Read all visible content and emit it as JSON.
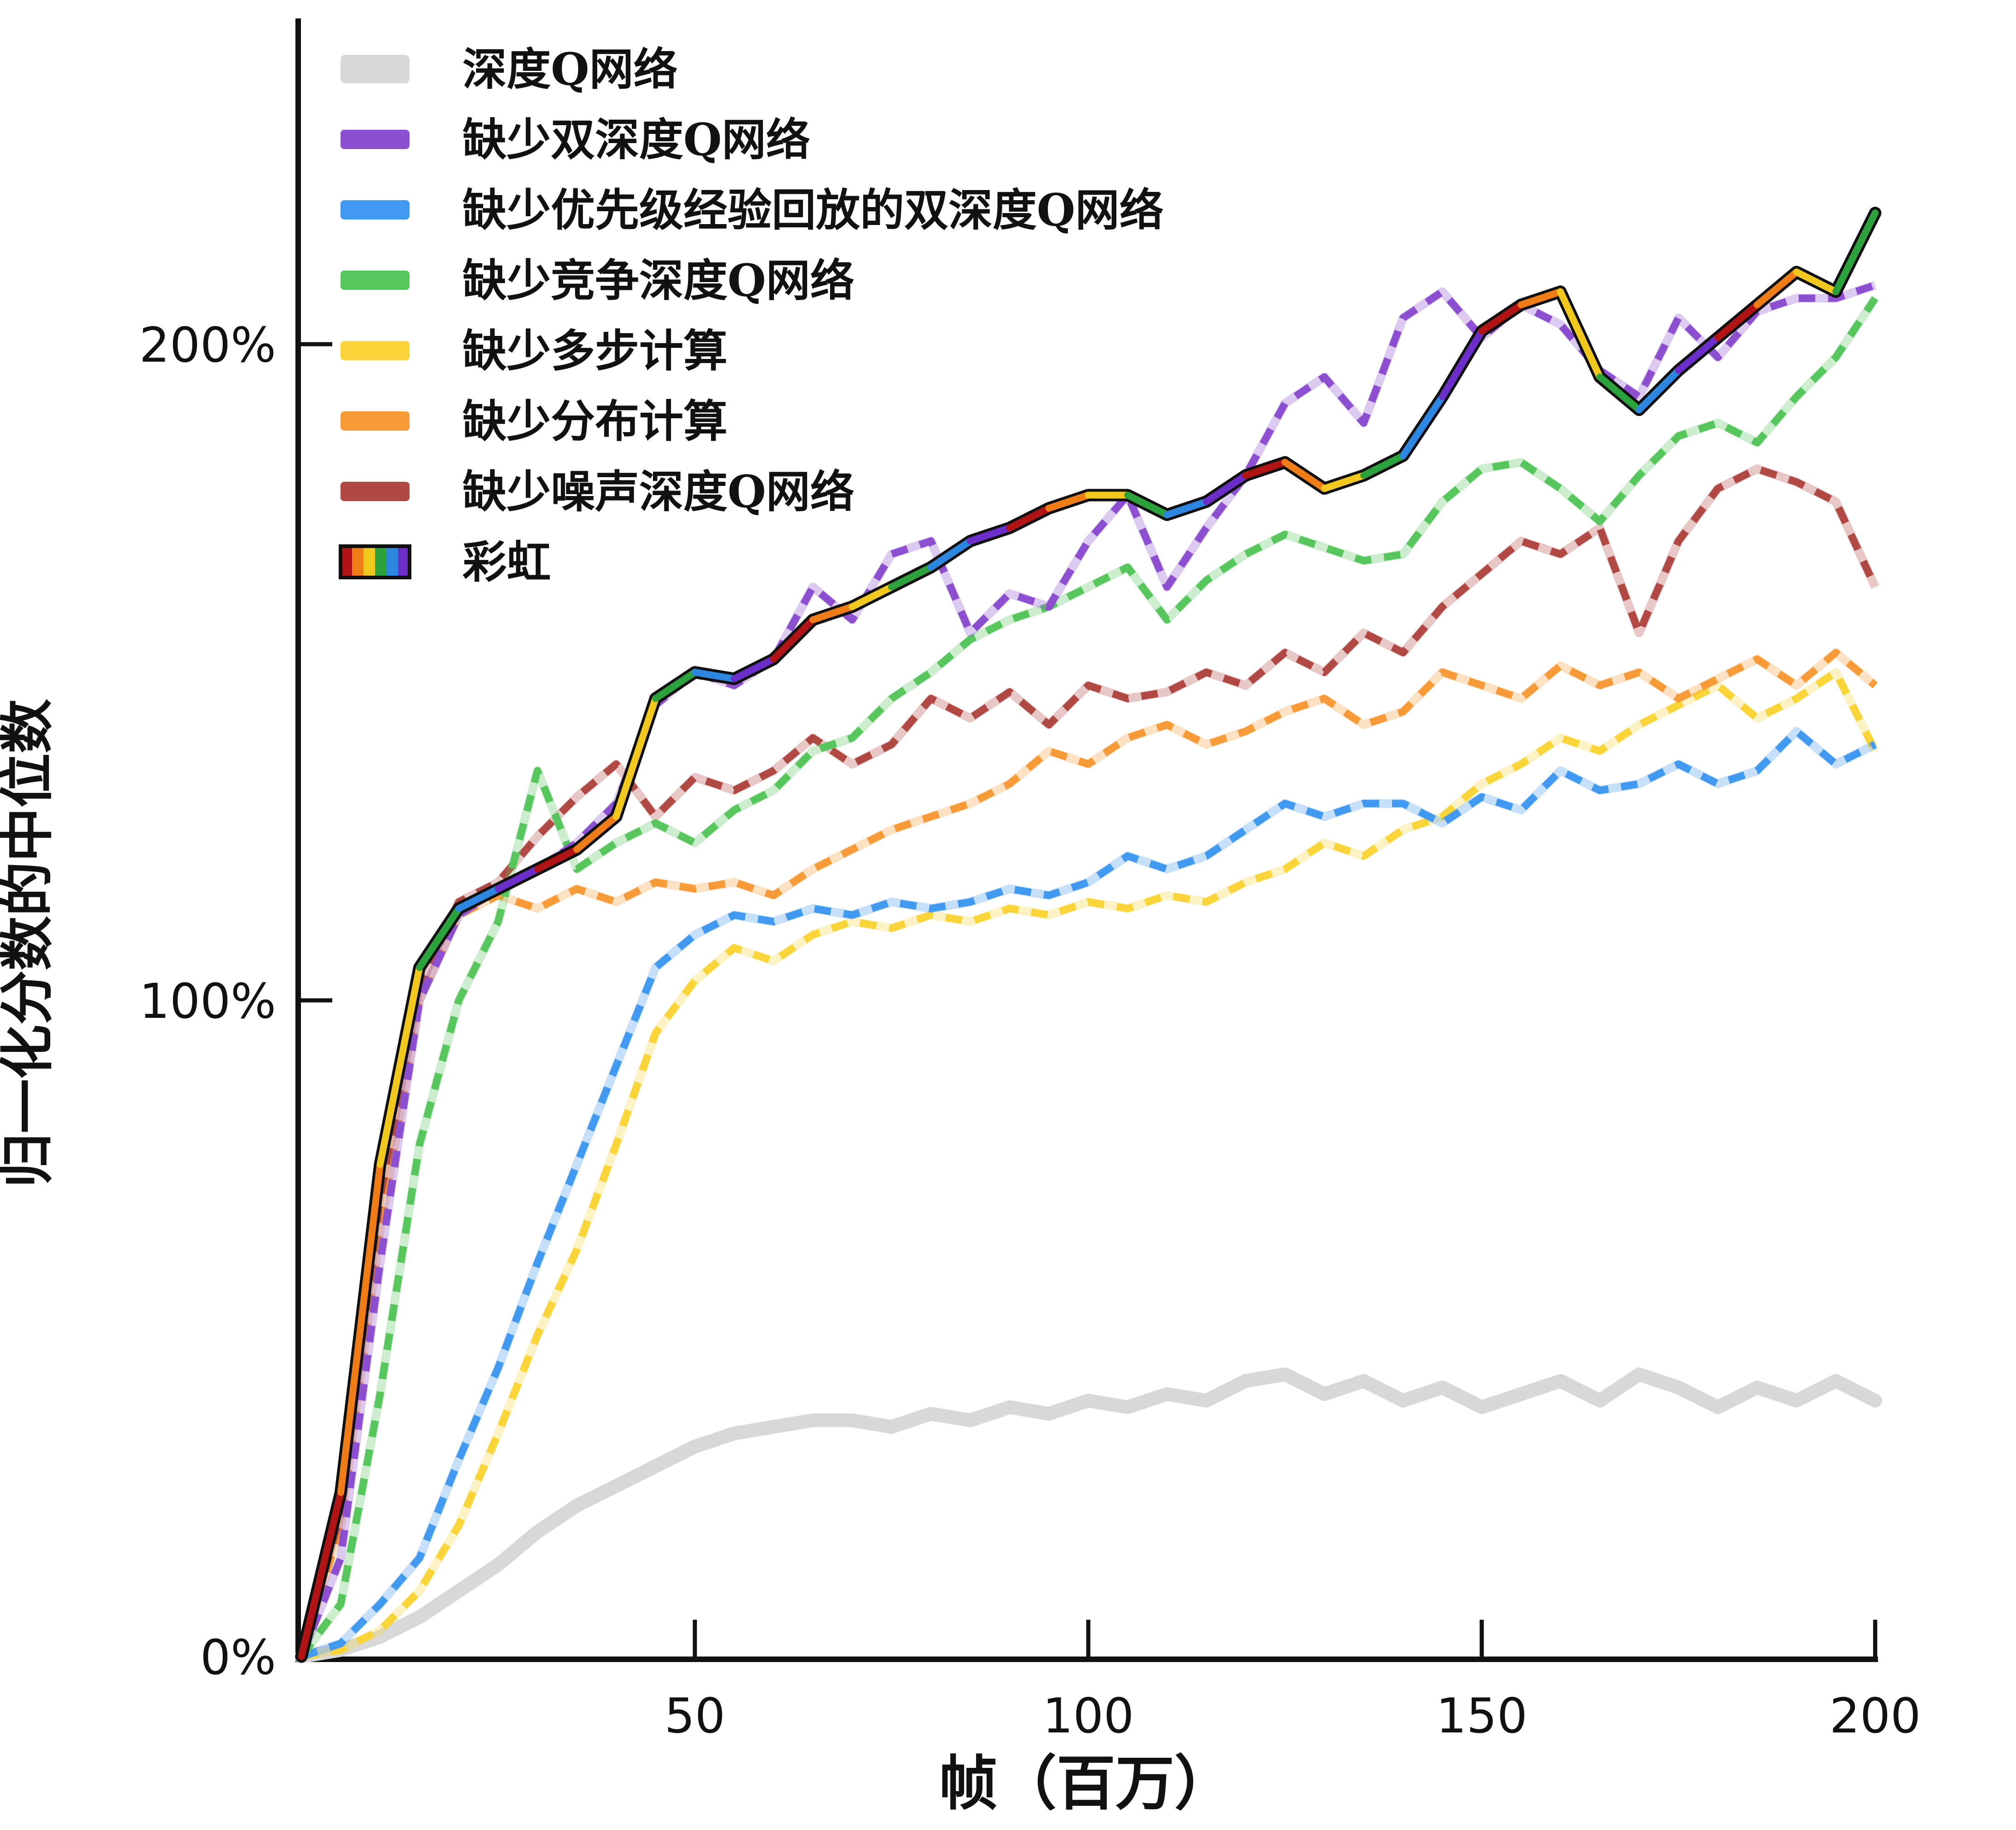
{
  "chart_data": {
    "type": "line",
    "title": "",
    "xlabel": "帧（百万）",
    "ylabel": "归一化分数的中位数",
    "xlim": [
      0,
      200
    ],
    "ylim": [
      0,
      250
    ],
    "grid": false,
    "legend_position": "upper-left",
    "x_ticks": [
      {
        "value": 50,
        "label": "50"
      },
      {
        "value": 100,
        "label": "100"
      },
      {
        "value": 150,
        "label": "150"
      },
      {
        "value": 200,
        "label": "200"
      }
    ],
    "y_ticks": [
      {
        "value": 0,
        "label": "0%"
      },
      {
        "value": 100,
        "label": "100%"
      },
      {
        "value": 200,
        "label": "200%"
      }
    ],
    "frames": [
      0,
      5,
      10,
      15,
      20,
      25,
      30,
      35,
      40,
      45,
      50,
      55,
      60,
      65,
      70,
      75,
      80,
      85,
      90,
      95,
      100,
      105,
      110,
      115,
      120,
      125,
      130,
      135,
      140,
      145,
      150,
      155,
      160,
      165,
      170,
      175,
      180,
      185,
      190,
      195,
      200
    ],
    "axis_color": "#111111",
    "rainbow_cycle": [
      "#b01414",
      "#ee7d18",
      "#f0c81e",
      "#2ca23c",
      "#2d86e0",
      "#6c2ec8"
    ],
    "series": [
      {
        "name": "深度Q网络",
        "color": "#d8d8d8",
        "style": "thick-solid",
        "values": [
          0,
          1,
          3,
          6,
          10,
          14,
          19,
          23,
          26,
          29,
          32,
          34,
          35,
          36,
          36,
          35,
          37,
          36,
          38,
          37,
          39,
          38,
          40,
          39,
          42,
          43,
          40,
          42,
          39,
          41,
          38,
          40,
          42,
          39,
          43,
          41,
          38,
          41,
          39,
          42,
          39
        ]
      },
      {
        "name": "缺少多步计算",
        "color": "#f9d53a",
        "style": "dashed",
        "values": [
          0,
          1,
          4,
          10,
          20,
          34,
          49,
          62,
          78,
          95,
          103,
          108,
          106,
          110,
          112,
          111,
          113,
          112,
          114,
          113,
          115,
          114,
          116,
          115,
          118,
          120,
          124,
          122,
          126,
          128,
          133,
          136,
          140,
          138,
          142,
          145,
          148,
          143,
          146,
          150,
          138
        ]
      },
      {
        "name": "缺少优先级经验回放的双深度Q网络",
        "color": "#4199f0",
        "style": "dashed",
        "values": [
          0,
          2,
          8,
          15,
          30,
          44,
          60,
          75,
          90,
          105,
          110,
          113,
          112,
          114,
          113,
          115,
          114,
          115,
          117,
          116,
          118,
          122,
          120,
          122,
          126,
          130,
          128,
          130,
          130,
          127,
          131,
          129,
          135,
          132,
          133,
          136,
          133,
          135,
          141,
          136,
          139
        ]
      },
      {
        "name": "缺少分布计算",
        "color": "#f79b38",
        "style": "dashed",
        "values": [
          0,
          20,
          65,
          100,
          113,
          116,
          114,
          117,
          115,
          118,
          117,
          118,
          116,
          120,
          123,
          126,
          128,
          130,
          133,
          138,
          136,
          140,
          142,
          139,
          141,
          144,
          146,
          142,
          144,
          150,
          148,
          146,
          151,
          148,
          150,
          146,
          149,
          152,
          148,
          153,
          148
        ]
      },
      {
        "name": "缺少噪声深度Q网络",
        "color": "#b04843",
        "style": "dashed",
        "values": [
          0,
          22,
          70,
          102,
          115,
          118,
          125,
          131,
          136,
          128,
          134,
          132,
          135,
          140,
          136,
          139,
          146,
          143,
          147,
          142,
          148,
          146,
          147,
          150,
          148,
          153,
          150,
          156,
          153,
          160,
          165,
          170,
          168,
          172,
          156,
          170,
          178,
          181,
          179,
          176,
          163
        ]
      },
      {
        "name": "缺少竞争深度Q网络",
        "color": "#57c75d",
        "style": "dashed",
        "values": [
          0,
          8,
          40,
          78,
          100,
          112,
          135,
          120,
          124,
          127,
          124,
          129,
          132,
          138,
          140,
          146,
          150,
          155,
          158,
          160,
          163,
          166,
          158,
          164,
          168,
          171,
          169,
          167,
          168,
          176,
          181,
          182,
          178,
          173,
          180,
          186,
          188,
          185,
          192,
          198,
          207
        ]
      },
      {
        "name": "缺少双深度Q网络",
        "color": "#8b4fd0",
        "style": "dashed",
        "values": [
          0,
          15,
          60,
          100,
          113,
          117,
          120,
          124,
          130,
          145,
          150,
          148,
          152,
          163,
          158,
          168,
          170,
          156,
          162,
          160,
          170,
          177,
          163,
          172,
          180,
          191,
          195,
          188,
          204,
          208,
          201,
          206,
          203,
          196,
          192,
          204,
          198,
          205,
          207,
          207,
          209
        ]
      },
      {
        "name": "彩虹",
        "color": "#b01414",
        "style": "rainbow",
        "outline": "#101010",
        "values": [
          0,
          25,
          75,
          105,
          114,
          117,
          120,
          123,
          128,
          146,
          150,
          149,
          152,
          158,
          160,
          163,
          166,
          170,
          172,
          175,
          177,
          177,
          174,
          176,
          180,
          182,
          178,
          180,
          183,
          192,
          202,
          206,
          208,
          195,
          190,
          196,
          201,
          206,
          211,
          208,
          220
        ]
      }
    ],
    "legend_order": [
      "深度Q网络",
      "缺少双深度Q网络",
      "缺少优先级经验回放的双深度Q网络",
      "缺少竞争深度Q网络",
      "缺少多步计算",
      "缺少分布计算",
      "缺少噪声深度Q网络",
      "彩虹"
    ]
  }
}
